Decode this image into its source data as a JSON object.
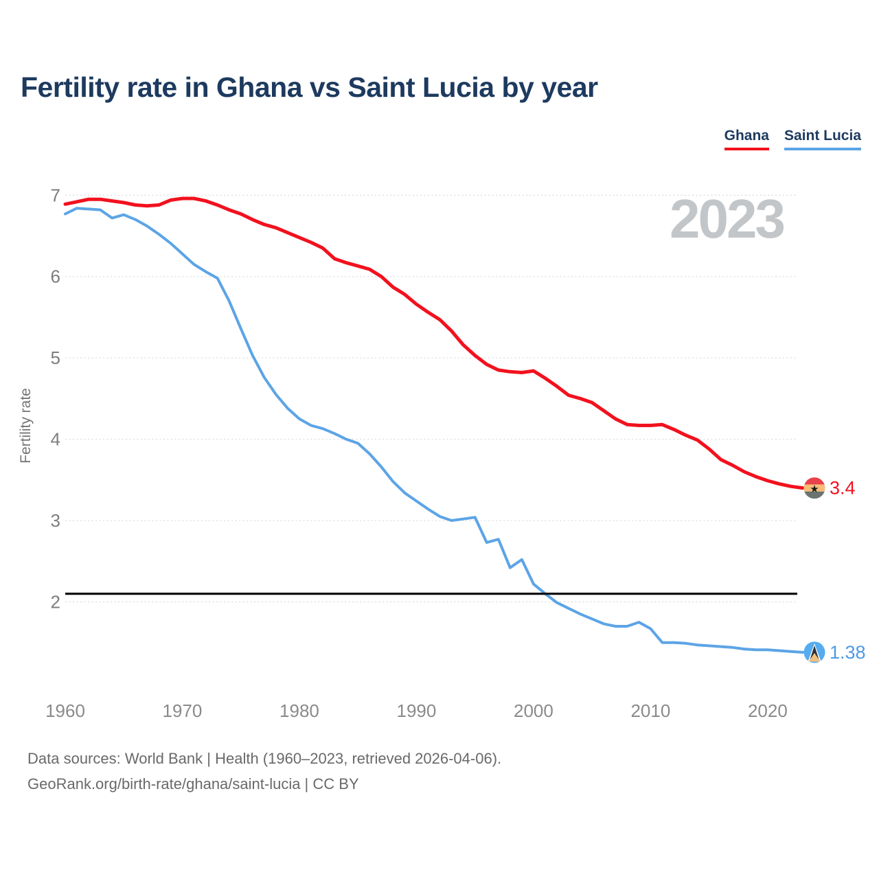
{
  "title": "Fertility rate in Ghana vs Saint Lucia by year",
  "watermark": "2023",
  "legend": [
    {
      "label": "Ghana",
      "color": "#f2111e"
    },
    {
      "label": "Saint Lucia",
      "color": "#5ca4e6"
    }
  ],
  "y_axis": {
    "label": "Fertility rate",
    "ticks": [
      7,
      6,
      5,
      4,
      3,
      2
    ]
  },
  "x_axis": {
    "ticks": [
      1960,
      1970,
      1980,
      1990,
      2000,
      2010,
      2020
    ]
  },
  "reference_line": {
    "value": 2.1,
    "color": "#111111"
  },
  "end_labels": [
    {
      "series": "Ghana",
      "value": "3.4",
      "color": "#f2111e",
      "flag": "ghana-flag"
    },
    {
      "series": "Saint Lucia",
      "value": "1.38",
      "color": "#4e9ae4",
      "flag": "saint-lucia-flag"
    }
  ],
  "footer": {
    "line1": "Data sources: World Bank | Health (1960–2023, retrieved 2026-04-06).",
    "line2": "GeoRank.org/birth-rate/ghana/saint-lucia | CC BY"
  },
  "chart_data": {
    "type": "line",
    "title": "Fertility rate in Ghana vs Saint Lucia by year",
    "xlabel": "",
    "ylabel": "Fertility rate",
    "ylim": [
      1.3,
      7.05
    ],
    "xlim": [
      1960,
      2023
    ],
    "grid": "horizontal-dotted",
    "legend_position": "top-right",
    "x": [
      1960,
      1961,
      1962,
      1963,
      1964,
      1965,
      1966,
      1967,
      1968,
      1969,
      1970,
      1971,
      1972,
      1973,
      1974,
      1975,
      1976,
      1977,
      1978,
      1979,
      1980,
      1981,
      1982,
      1983,
      1984,
      1985,
      1986,
      1987,
      1988,
      1989,
      1990,
      1991,
      1992,
      1993,
      1994,
      1995,
      1996,
      1997,
      1998,
      1999,
      2000,
      2001,
      2002,
      2003,
      2004,
      2005,
      2006,
      2007,
      2008,
      2009,
      2010,
      2011,
      2012,
      2013,
      2014,
      2015,
      2016,
      2017,
      2018,
      2019,
      2020,
      2021,
      2022,
      2023
    ],
    "series": [
      {
        "name": "Ghana",
        "color": "#f2111e",
        "values": [
          6.89,
          6.92,
          6.95,
          6.95,
          6.93,
          6.91,
          6.88,
          6.87,
          6.88,
          6.94,
          6.96,
          6.96,
          6.93,
          6.88,
          6.82,
          6.77,
          6.7,
          6.64,
          6.6,
          6.54,
          6.48,
          6.42,
          6.35,
          6.22,
          6.17,
          6.13,
          6.09,
          6.0,
          5.87,
          5.78,
          5.66,
          5.56,
          5.47,
          5.33,
          5.16,
          5.03,
          4.92,
          4.85,
          4.83,
          4.82,
          4.84,
          4.75,
          4.65,
          4.54,
          4.5,
          4.45,
          4.35,
          4.25,
          4.18,
          4.17,
          4.17,
          4.18,
          4.12,
          4.05,
          3.99,
          3.88,
          3.75,
          3.68,
          3.6,
          3.54,
          3.49,
          3.45,
          3.42,
          3.4
        ]
      },
      {
        "name": "Saint Lucia",
        "color": "#5ca4e6",
        "values": [
          6.77,
          6.84,
          6.83,
          6.82,
          6.72,
          6.76,
          6.7,
          6.62,
          6.52,
          6.41,
          6.28,
          6.15,
          6.06,
          5.98,
          5.7,
          5.36,
          5.03,
          4.76,
          4.55,
          4.38,
          4.25,
          4.17,
          4.13,
          4.07,
          4.0,
          3.95,
          3.82,
          3.66,
          3.48,
          3.34,
          3.24,
          3.14,
          3.05,
          3.0,
          3.02,
          3.04,
          2.73,
          2.77,
          2.42,
          2.52,
          2.22,
          2.1,
          1.99,
          1.92,
          1.85,
          1.79,
          1.73,
          1.7,
          1.7,
          1.75,
          1.67,
          1.5,
          1.5,
          1.49,
          1.47,
          1.46,
          1.45,
          1.44,
          1.42,
          1.41,
          1.41,
          1.4,
          1.39,
          1.38
        ]
      }
    ],
    "reference_line_value": 2.1
  }
}
